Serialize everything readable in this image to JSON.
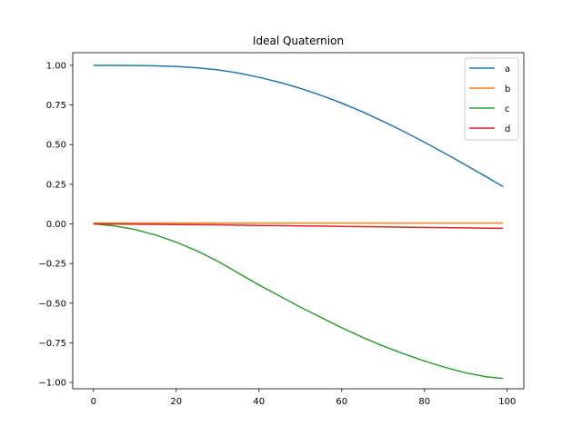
{
  "chart_data": {
    "type": "line",
    "title": "Ideal Quaternion",
    "xlabel": "",
    "ylabel": "",
    "xlim": [
      -5,
      104
    ],
    "ylim": [
      -1.04,
      1.08
    ],
    "xticks": [
      0,
      20,
      40,
      60,
      80,
      100
    ],
    "xtick_labels": [
      "0",
      "20",
      "40",
      "60",
      "80",
      "100"
    ],
    "yticks": [
      1.0,
      0.75,
      0.5,
      0.25,
      0.0,
      -0.25,
      -0.5,
      -0.75,
      -1.0
    ],
    "ytick_labels": [
      "1.00",
      "0.75",
      "0.50",
      "0.25",
      "0.00",
      "−0.25",
      "−0.50",
      "−0.75",
      "−1.00"
    ],
    "grid": false,
    "legend_position": "top-right",
    "x": [
      0,
      5,
      10,
      15,
      20,
      25,
      30,
      35,
      40,
      45,
      50,
      55,
      60,
      65,
      70,
      75,
      80,
      85,
      90,
      95,
      99
    ],
    "series": [
      {
        "name": "a",
        "color": "#1f77b4",
        "values": [
          1.0,
          1.0,
          0.999,
          0.997,
          0.993,
          0.985,
          0.972,
          0.952,
          0.925,
          0.893,
          0.855,
          0.811,
          0.762,
          0.707,
          0.647,
          0.583,
          0.515,
          0.444,
          0.371,
          0.296,
          0.235
        ]
      },
      {
        "name": "b",
        "color": "#ff7f0e",
        "values": [
          0.005,
          0.005,
          0.005,
          0.005,
          0.005,
          0.005,
          0.005,
          0.005,
          0.005,
          0.005,
          0.005,
          0.005,
          0.005,
          0.005,
          0.005,
          0.005,
          0.005,
          0.005,
          0.005,
          0.005,
          0.005
        ]
      },
      {
        "name": "c",
        "color": "#2ca02c",
        "values": [
          0.0,
          -0.012,
          -0.035,
          -0.07,
          -0.115,
          -0.17,
          -0.235,
          -0.31,
          -0.385,
          -0.455,
          -0.525,
          -0.59,
          -0.655,
          -0.715,
          -0.77,
          -0.82,
          -0.865,
          -0.905,
          -0.94,
          -0.965,
          -0.975
        ]
      },
      {
        "name": "d",
        "color": "#d62728",
        "values": [
          0.0,
          -0.001,
          -0.002,
          -0.003,
          -0.004,
          -0.005,
          -0.006,
          -0.008,
          -0.01,
          -0.011,
          -0.013,
          -0.014,
          -0.016,
          -0.017,
          -0.019,
          -0.021,
          -0.022,
          -0.024,
          -0.025,
          -0.027,
          -0.028
        ]
      }
    ]
  }
}
